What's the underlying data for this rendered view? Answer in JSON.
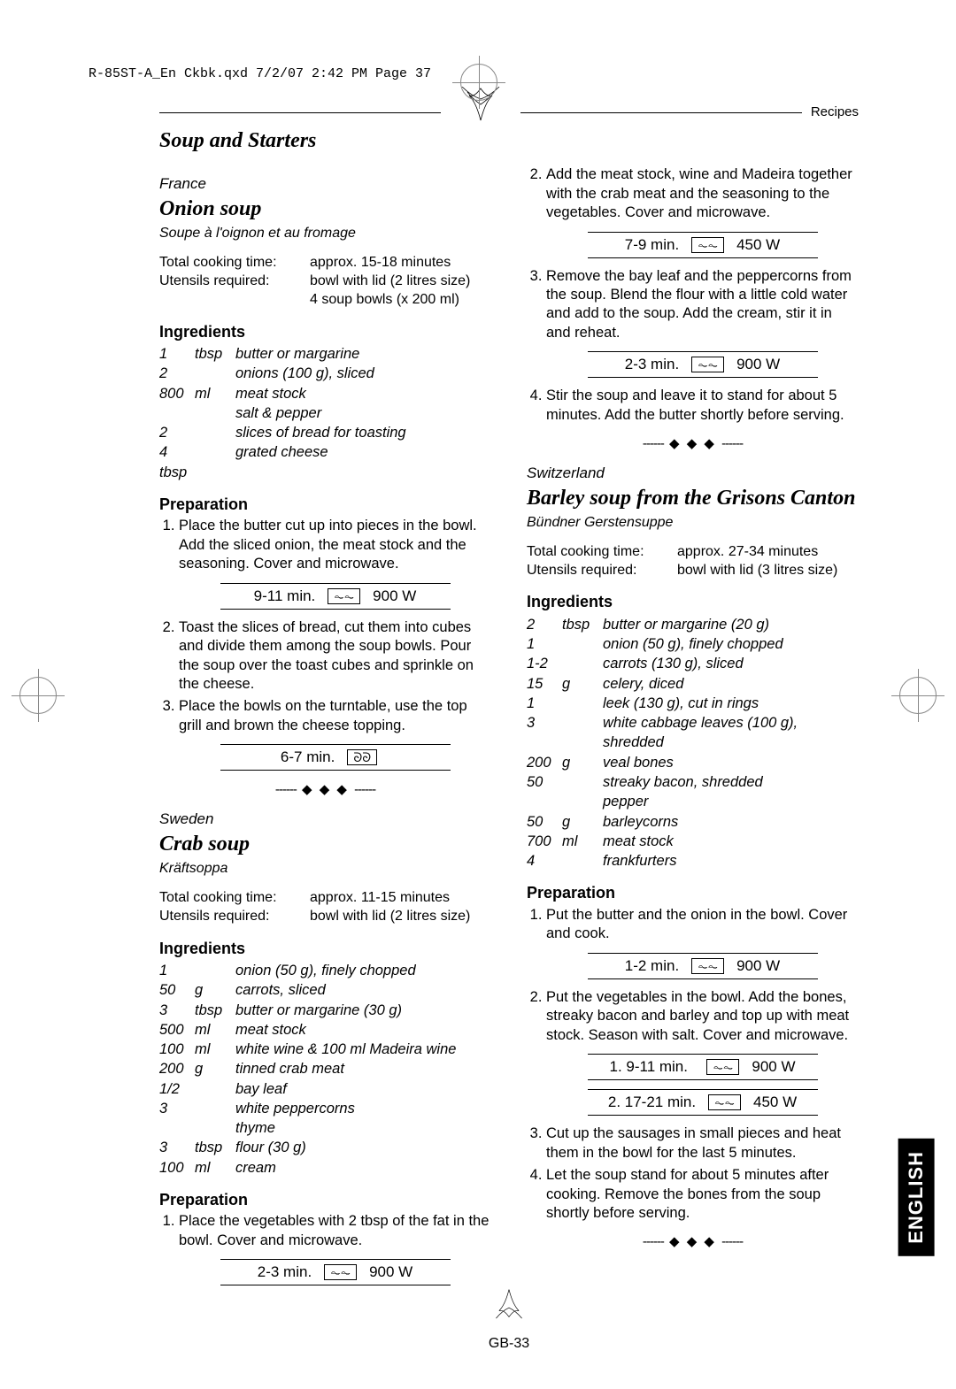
{
  "print_header": "R-85ST-A_En Ckbk.qxd  7/2/07  2:42 PM  Page 37",
  "top_label": "Recipes",
  "section_title": "Soup and Starters",
  "page_number": "GB-33",
  "english_tab": "ENGLISH",
  "icons": {
    "microwave_glyph": "⏦⏦",
    "grill_glyph": "ᘐᘐ"
  },
  "divider_text": "◆ ◆ ◆",
  "recipes": [
    {
      "country": "France",
      "title": "Onion soup",
      "subtitle": "Soupe à l'oignon et au fromage",
      "meta": [
        {
          "label": "Total cooking time:",
          "value": "approx. 15-18 minutes"
        },
        {
          "label": "Utensils required:",
          "value": "bowl with lid (2 litres size)"
        },
        {
          "label": "",
          "value": "4 soup bowls (x 200 ml)"
        }
      ],
      "ingredients": [
        {
          "qty": "1",
          "unit": "tbsp",
          "item": "butter or margarine"
        },
        {
          "qty": "2",
          "unit": "",
          "item": "onions (100 g), sliced"
        },
        {
          "qty": "800",
          "unit": "ml",
          "item": "meat stock"
        },
        {
          "qty": "",
          "unit": "",
          "item": "salt & pepper"
        },
        {
          "qty": "2",
          "unit": "",
          "item": "slices of bread for toasting"
        },
        {
          "qty": "4 tbsp",
          "unit": "",
          "item": "grated cheese"
        }
      ],
      "preparation": [
        {
          "text": "Place the butter cut up into pieces in the bowl.  Add the sliced onion, the meat stock and the seasoning. Cover and microwave.",
          "power": {
            "time": "9-11 min.",
            "icon": "microwave",
            "watt": "900 W"
          }
        },
        {
          "text": "Toast the slices of bread, cut them into cubes and divide them among the soup bowls.  Pour the soup over the toast cubes and sprinkle on the cheese."
        },
        {
          "text": "Place the bowls on the turntable, use the top grill and brown the cheese topping.",
          "power": {
            "time": "6-7 min.",
            "icon": "grill",
            "watt": ""
          }
        }
      ],
      "divider_after": true
    },
    {
      "country": "Sweden",
      "title": "Crab soup",
      "subtitle": "Kräftsoppa",
      "meta": [
        {
          "label": "Total cooking time:",
          "value": "approx. 11-15 minutes"
        },
        {
          "label": "Utensils required:",
          "value": "bowl with lid (2 litres size)"
        }
      ],
      "ingredients": [
        {
          "qty": "1",
          "unit": "",
          "item": "onion (50 g), finely chopped"
        },
        {
          "qty": "50",
          "unit": "g",
          "item": "carrots, sliced"
        },
        {
          "qty": "3",
          "unit": "tbsp",
          "item": "butter or margarine (30 g)"
        },
        {
          "qty": "500",
          "unit": "ml",
          "item": "meat stock"
        },
        {
          "qty": "100",
          "unit": "ml",
          "item": "white wine & 100 ml Madeira wine"
        },
        {
          "qty": "200",
          "unit": "g",
          "item": "tinned crab meat"
        },
        {
          "qty": "1/2",
          "unit": "",
          "item": "bay leaf"
        },
        {
          "qty": "3",
          "unit": "",
          "item": "white peppercorns"
        },
        {
          "qty": "",
          "unit": "",
          "item": "thyme"
        },
        {
          "qty": "3",
          "unit": "tbsp",
          "item": "flour (30 g)"
        },
        {
          "qty": "100",
          "unit": "ml",
          "item": "cream"
        }
      ],
      "preparation_intro": [
        {
          "text": "Place the vegetables with 2 tbsp of the fat in the bowl. Cover and microwave.",
          "power": {
            "time": "2-3 min.",
            "icon": "microwave",
            "watt": "900 W"
          }
        }
      ],
      "preparation_rest": [
        {
          "text": "Add the meat stock, wine and Madeira together with the crab meat and the seasoning to the vegetables. Cover and microwave.",
          "power": {
            "time": "7-9 min.",
            "icon": "microwave",
            "watt": "450 W"
          }
        },
        {
          "text": "Remove the bay leaf and the peppercorns from the soup.  Blend the flour with a little cold water and add to the soup.  Add the cream, stir it in and reheat.",
          "power": {
            "time": "2-3 min.",
            "icon": "microwave",
            "watt": "900 W"
          }
        },
        {
          "text": "Stir the soup and leave it to stand for about 5 minutes.  Add the butter shortly before serving."
        }
      ],
      "divider_after": true
    },
    {
      "country": "Switzerland",
      "title": "Barley soup from the Grisons Canton",
      "subtitle": "Bündner Gerstensuppe",
      "meta": [
        {
          "label": "Total cooking time:",
          "value": "approx. 27-34 minutes"
        },
        {
          "label": "Utensils required:",
          "value": "bowl with lid (3 litres size)"
        }
      ],
      "ingredients": [
        {
          "qty": "2",
          "unit": "tbsp",
          "item": "butter or margarine (20 g)"
        },
        {
          "qty": "1",
          "unit": "",
          "item": "onion (50 g), finely chopped"
        },
        {
          "qty": "1-2",
          "unit": "",
          "item": "carrots (130 g), sliced"
        },
        {
          "qty": "15",
          "unit": "g",
          "item": "celery, diced"
        },
        {
          "qty": "1",
          "unit": "",
          "item": "leek (130 g), cut in rings"
        },
        {
          "qty": "3",
          "unit": "",
          "item": "white cabbage leaves (100 g), shredded"
        },
        {
          "qty": "200",
          "unit": "g",
          "item": "veal bones"
        },
        {
          "qty": "50",
          "unit": "",
          "item": "streaky bacon, shredded"
        },
        {
          "qty": "",
          "unit": "",
          "item": "pepper"
        },
        {
          "qty": "50",
          "unit": "g",
          "item": "barleycorns"
        },
        {
          "qty": "700",
          "unit": "ml",
          "item": "meat stock"
        },
        {
          "qty": "4",
          "unit": "",
          "item": "frankfurters"
        }
      ],
      "preparation": [
        {
          "text": "Put the butter and the onion in the bowl.  Cover and cook.",
          "power": {
            "time": "1-2 min.",
            "icon": "microwave",
            "watt": "900 W"
          }
        },
        {
          "text": "Put the vegetables in the bowl.  Add the bones, streaky bacon and barley and top up with meat stock.  Season with salt.  Cover and microwave.",
          "power_list": [
            {
              "label": "1.  9-11 min.",
              "icon": "microwave",
              "watt": "900 W"
            },
            {
              "label": "2.  17-21 min.",
              "icon": "microwave",
              "watt": "450 W"
            }
          ]
        },
        {
          "text": "Cut up the sausages in small pieces and heat them in the bowl for the last 5 minutes."
        },
        {
          "text": "Let the soup stand for about 5 minutes after cooking. Remove the bones from the soup shortly before serving."
        }
      ],
      "divider_after": true
    }
  ]
}
